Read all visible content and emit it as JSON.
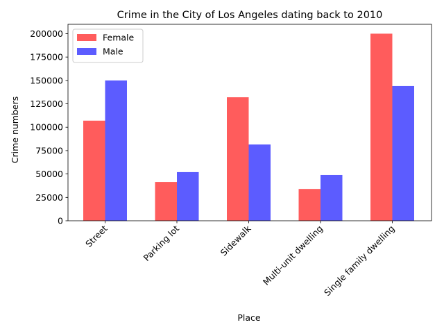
{
  "chart_data": {
    "type": "bar",
    "title": "Crime in the City of Los Angeles dating back to 2010",
    "xlabel": "Place",
    "ylabel": "Crime numbers",
    "categories": [
      "Street",
      "Parking lot",
      "Sidewalk",
      "Multi-unit dwelling",
      "Single family dwelling"
    ],
    "series": [
      {
        "name": "Female",
        "color": "#ff3333",
        "values": [
          107000,
          41500,
          132000,
          34000,
          200000
        ]
      },
      {
        "name": "Male",
        "color": "#3333ff",
        "values": [
          150000,
          52000,
          81500,
          49000,
          144000
        ]
      }
    ],
    "ylim": [
      0,
      210000
    ],
    "yticks": [
      0,
      25000,
      50000,
      75000,
      100000,
      125000,
      150000,
      175000,
      200000
    ],
    "legend": "upper-left",
    "grid": false
  }
}
